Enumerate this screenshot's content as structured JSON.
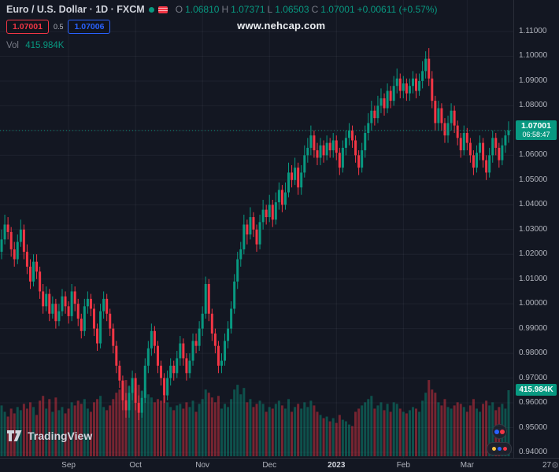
{
  "colors": {
    "bg": "#131722",
    "up": "#089981",
    "down": "#f23645",
    "grid": "rgba(240,243,250,0.055)",
    "axis_text": "#b2b5be",
    "sell_red": "#f23645",
    "buy_blue": "#2962ff",
    "label_green": "#089981"
  },
  "watermark": "www.nehcap.com",
  "header": {
    "symbol_title": "Euro / U.S. Dollar · 1D · FXCM",
    "ohlc": {
      "open_label": "O",
      "open": "1.06810",
      "high_label": "H",
      "high": "1.07371",
      "low_label": "L",
      "low": "1.06503",
      "close_label": "C",
      "close": "1.07001",
      "change": "+0.00611 (+0.57%)"
    },
    "sell_price": "1.07001",
    "spread": "0.5",
    "buy_price": "1.07006",
    "volume_label": "Vol",
    "volume_value": "415.984K"
  },
  "price_label": {
    "price": "1.07001",
    "countdown": "06:58:47"
  },
  "volume_axis_label": "415.984K",
  "logo_text": "TradingView",
  "icons": {
    "gear": "⚙"
  },
  "chart_data": {
    "type": "candlestick",
    "title": "Euro / U.S. Dollar",
    "interval": "1D",
    "exchange": "FXCM",
    "last_price": 1.07001,
    "last_volume_k": 415.984,
    "ylim": [
      0.94,
      1.11
    ],
    "y_ticks": [
      0.94,
      0.95,
      0.96,
      0.97,
      0.98,
      0.99,
      1.0,
      1.01,
      1.02,
      1.03,
      1.04,
      1.05,
      1.06,
      1.07,
      1.08,
      1.09,
      1.1,
      1.11
    ],
    "x_ticks": [
      {
        "label": "Sep",
        "index": 21
      },
      {
        "label": "Oct",
        "index": 42
      },
      {
        "label": "Nov",
        "index": 63
      },
      {
        "label": "Dec",
        "index": 84
      },
      {
        "label": "2023",
        "index": 105,
        "emph": true
      },
      {
        "label": "Feb",
        "index": 126
      },
      {
        "label": "Mar",
        "index": 146
      },
      {
        "label": "27",
        "index": 171
      }
    ],
    "volume_max_scale": 520,
    "candles": [
      [
        1.021,
        1.03,
        1.018,
        1.026,
        320
      ],
      [
        1.026,
        1.036,
        1.024,
        1.032,
        280
      ],
      [
        1.032,
        1.035,
        1.026,
        1.029,
        250
      ],
      [
        1.029,
        1.031,
        1.019,
        1.022,
        300
      ],
      [
        1.022,
        1.025,
        1.015,
        1.018,
        270
      ],
      [
        1.018,
        1.028,
        1.016,
        1.025,
        310
      ],
      [
        1.025,
        1.034,
        1.023,
        1.03,
        290
      ],
      [
        1.03,
        1.032,
        1.018,
        1.021,
        330
      ],
      [
        1.021,
        1.024,
        1.012,
        1.015,
        300
      ],
      [
        1.015,
        1.018,
        1.006,
        1.009,
        340
      ],
      [
        1.009,
        1.02,
        1.007,
        1.017,
        310
      ],
      [
        1.017,
        1.02,
        1.01,
        1.013,
        260
      ],
      [
        1.013,
        1.015,
        1.002,
        1.005,
        350
      ],
      [
        1.005,
        1.008,
        0.996,
        0.999,
        380
      ],
      [
        0.999,
        1.007,
        0.997,
        1.004,
        300
      ],
      [
        1.004,
        1.006,
        0.993,
        0.996,
        360
      ],
      [
        0.996,
        1.003,
        0.994,
        1.0,
        280
      ],
      [
        1.0,
        1.002,
        0.99,
        0.993,
        370
      ],
      [
        0.993,
        1.0,
        0.991,
        0.997,
        290
      ],
      [
        0.997,
        1.006,
        0.995,
        1.003,
        310
      ],
      [
        1.003,
        1.005,
        0.996,
        0.999,
        270
      ],
      [
        0.999,
        1.001,
        0.992,
        0.995,
        300
      ],
      [
        0.995,
        1.008,
        0.993,
        1.005,
        340
      ],
      [
        1.005,
        1.007,
        0.997,
        1.0,
        320
      ],
      [
        1.0,
        1.002,
        0.991,
        0.994,
        350
      ],
      [
        0.994,
        0.996,
        0.986,
        0.989,
        330
      ],
      [
        0.989,
        1.002,
        0.987,
        0.999,
        360
      ],
      [
        0.999,
        1.005,
        0.996,
        1.002,
        300
      ],
      [
        1.002,
        1.004,
        0.995,
        0.998,
        280
      ],
      [
        0.998,
        1.0,
        0.987,
        0.99,
        340
      ],
      [
        0.99,
        0.992,
        0.981,
        0.984,
        360
      ],
      [
        0.984,
        1.0,
        0.982,
        0.997,
        380
      ],
      [
        0.997,
        1.005,
        0.994,
        1.002,
        310
      ],
      [
        1.002,
        1.004,
        0.993,
        0.996,
        290
      ],
      [
        0.996,
        0.998,
        0.987,
        0.99,
        320
      ],
      [
        0.99,
        0.992,
        0.98,
        0.983,
        360
      ],
      [
        0.983,
        0.985,
        0.972,
        0.975,
        400
      ],
      [
        0.975,
        0.977,
        0.966,
        0.969,
        420
      ],
      [
        0.969,
        0.971,
        0.957,
        0.961,
        460
      ],
      [
        0.961,
        0.964,
        0.954,
        0.957,
        480
      ],
      [
        0.957,
        0.967,
        0.954,
        0.964,
        440
      ],
      [
        0.964,
        0.973,
        0.961,
        0.97,
        400
      ],
      [
        0.97,
        0.972,
        0.957,
        0.96,
        430
      ],
      [
        0.96,
        0.963,
        0.953,
        0.956,
        450
      ],
      [
        0.956,
        0.965,
        0.954,
        0.962,
        410
      ],
      [
        0.962,
        0.978,
        0.96,
        0.975,
        430
      ],
      [
        0.975,
        0.985,
        0.972,
        0.982,
        390
      ],
      [
        0.982,
        0.992,
        0.979,
        0.989,
        370
      ],
      [
        0.989,
        0.991,
        0.98,
        0.983,
        340
      ],
      [
        0.983,
        0.985,
        0.972,
        0.975,
        360
      ],
      [
        0.975,
        0.977,
        0.967,
        0.97,
        350
      ],
      [
        0.97,
        0.972,
        0.96,
        0.963,
        380
      ],
      [
        0.963,
        0.973,
        0.961,
        0.97,
        340
      ],
      [
        0.97,
        0.978,
        0.967,
        0.975,
        310
      ],
      [
        0.975,
        0.977,
        0.969,
        0.972,
        290
      ],
      [
        0.972,
        0.981,
        0.97,
        0.978,
        320
      ],
      [
        0.978,
        0.987,
        0.975,
        0.984,
        330
      ],
      [
        0.984,
        0.986,
        0.975,
        0.978,
        300
      ],
      [
        0.978,
        0.98,
        0.969,
        0.972,
        340
      ],
      [
        0.972,
        0.98,
        0.97,
        0.977,
        310
      ],
      [
        0.977,
        0.988,
        0.975,
        0.985,
        350
      ],
      [
        0.985,
        0.988,
        0.98,
        0.983,
        280
      ],
      [
        0.983,
        0.993,
        0.981,
        0.99,
        330
      ],
      [
        0.99,
        0.999,
        0.987,
        0.996,
        360
      ],
      [
        0.996,
        1.011,
        0.994,
        1.008,
        420
      ],
      [
        1.008,
        1.01,
        0.993,
        0.996,
        400
      ],
      [
        0.996,
        0.998,
        0.985,
        0.988,
        370
      ],
      [
        0.988,
        0.99,
        0.98,
        0.983,
        340
      ],
      [
        0.983,
        0.985,
        0.972,
        0.975,
        380
      ],
      [
        0.975,
        0.98,
        0.972,
        0.977,
        300
      ],
      [
        0.977,
        0.988,
        0.975,
        0.985,
        330
      ],
      [
        0.985,
        0.993,
        0.982,
        0.99,
        310
      ],
      [
        0.99,
        1.001,
        0.988,
        0.998,
        360
      ],
      [
        0.998,
        1.012,
        0.996,
        1.009,
        420
      ],
      [
        1.009,
        1.021,
        1.006,
        1.018,
        450
      ],
      [
        1.018,
        1.025,
        1.015,
        1.022,
        390
      ],
      [
        1.022,
        1.036,
        1.02,
        1.032,
        430
      ],
      [
        1.032,
        1.034,
        1.024,
        1.028,
        340
      ],
      [
        1.028,
        1.039,
        1.026,
        1.035,
        360
      ],
      [
        1.035,
        1.037,
        1.027,
        1.03,
        310
      ],
      [
        1.03,
        1.032,
        1.021,
        1.024,
        330
      ],
      [
        1.024,
        1.036,
        1.022,
        1.033,
        350
      ],
      [
        1.033,
        1.042,
        1.03,
        1.038,
        330
      ],
      [
        1.038,
        1.04,
        1.032,
        1.035,
        280
      ],
      [
        1.035,
        1.044,
        1.033,
        1.04,
        310
      ],
      [
        1.04,
        1.042,
        1.031,
        1.034,
        300
      ],
      [
        1.034,
        1.045,
        1.032,
        1.041,
        330
      ],
      [
        1.041,
        1.049,
        1.038,
        1.046,
        350
      ],
      [
        1.046,
        1.048,
        1.037,
        1.04,
        320
      ],
      [
        1.04,
        1.049,
        1.038,
        1.045,
        300
      ],
      [
        1.045,
        1.057,
        1.043,
        1.053,
        360
      ],
      [
        1.053,
        1.056,
        1.047,
        1.05,
        280
      ],
      [
        1.05,
        1.059,
        1.048,
        1.055,
        310
      ],
      [
        1.055,
        1.057,
        1.044,
        1.047,
        330
      ],
      [
        1.047,
        1.056,
        1.044,
        1.053,
        300
      ],
      [
        1.053,
        1.064,
        1.051,
        1.06,
        340
      ],
      [
        1.06,
        1.067,
        1.057,
        1.063,
        310
      ],
      [
        1.063,
        1.072,
        1.06,
        1.068,
        350
      ],
      [
        1.068,
        1.07,
        1.059,
        1.062,
        320
      ],
      [
        1.062,
        1.065,
        1.056,
        1.059,
        280
      ],
      [
        1.059,
        1.067,
        1.056,
        1.064,
        260
      ],
      [
        1.064,
        1.066,
        1.057,
        1.06,
        240
      ],
      [
        1.06,
        1.068,
        1.058,
        1.065,
        250
      ],
      [
        1.065,
        1.067,
        1.059,
        1.062,
        220
      ],
      [
        1.062,
        1.069,
        1.059,
        1.066,
        240
      ],
      [
        1.066,
        1.068,
        1.058,
        1.061,
        210
      ],
      [
        1.061,
        1.063,
        1.052,
        1.055,
        260
      ],
      [
        1.055,
        1.066,
        1.053,
        1.063,
        230
      ],
      [
        1.063,
        1.07,
        1.06,
        1.067,
        220
      ],
      [
        1.067,
        1.073,
        1.064,
        1.07,
        200
      ],
      [
        1.07,
        1.072,
        1.063,
        1.066,
        190
      ],
      [
        1.066,
        1.068,
        1.057,
        1.06,
        280
      ],
      [
        1.06,
        1.062,
        1.052,
        1.055,
        300
      ],
      [
        1.055,
        1.065,
        1.053,
        1.062,
        320
      ],
      [
        1.062,
        1.072,
        1.059,
        1.069,
        340
      ],
      [
        1.069,
        1.077,
        1.066,
        1.073,
        360
      ],
      [
        1.073,
        1.082,
        1.07,
        1.078,
        380
      ],
      [
        1.078,
        1.08,
        1.072,
        1.075,
        300
      ],
      [
        1.075,
        1.084,
        1.073,
        1.08,
        320
      ],
      [
        1.08,
        1.087,
        1.077,
        1.083,
        340
      ],
      [
        1.083,
        1.085,
        1.076,
        1.079,
        290
      ],
      [
        1.079,
        1.089,
        1.077,
        1.086,
        330
      ],
      [
        1.086,
        1.088,
        1.079,
        1.082,
        280
      ],
      [
        1.082,
        1.092,
        1.08,
        1.088,
        340
      ],
      [
        1.088,
        1.095,
        1.085,
        1.091,
        330
      ],
      [
        1.091,
        1.093,
        1.083,
        1.086,
        300
      ],
      [
        1.086,
        1.092,
        1.083,
        1.089,
        280
      ],
      [
        1.089,
        1.091,
        1.082,
        1.085,
        270
      ],
      [
        1.085,
        1.091,
        1.082,
        1.088,
        290
      ],
      [
        1.088,
        1.094,
        1.085,
        1.091,
        310
      ],
      [
        1.091,
        1.093,
        1.083,
        1.086,
        300
      ],
      [
        1.086,
        1.093,
        1.084,
        1.09,
        280
      ],
      [
        1.09,
        1.098,
        1.087,
        1.094,
        350
      ],
      [
        1.094,
        1.102,
        1.091,
        1.099,
        400
      ],
      [
        1.099,
        1.1033,
        1.088,
        1.091,
        480
      ],
      [
        1.091,
        1.094,
        1.079,
        1.082,
        420
      ],
      [
        1.082,
        1.084,
        1.07,
        1.073,
        400
      ],
      [
        1.073,
        1.082,
        1.07,
        1.079,
        340
      ],
      [
        1.079,
        1.081,
        1.07,
        1.073,
        320
      ],
      [
        1.073,
        1.075,
        1.065,
        1.068,
        360
      ],
      [
        1.068,
        1.076,
        1.065,
        1.073,
        310
      ],
      [
        1.073,
        1.081,
        1.07,
        1.078,
        300
      ],
      [
        1.078,
        1.08,
        1.069,
        1.072,
        320
      ],
      [
        1.072,
        1.074,
        1.064,
        1.067,
        340
      ],
      [
        1.067,
        1.069,
        1.059,
        1.062,
        330
      ],
      [
        1.062,
        1.072,
        1.06,
        1.069,
        310
      ],
      [
        1.069,
        1.071,
        1.062,
        1.065,
        280
      ],
      [
        1.065,
        1.067,
        1.057,
        1.06,
        320
      ],
      [
        1.06,
        1.062,
        1.052,
        1.055,
        360
      ],
      [
        1.055,
        1.064,
        1.053,
        1.061,
        300
      ],
      [
        1.061,
        1.068,
        1.058,
        1.065,
        280
      ],
      [
        1.065,
        1.067,
        1.055,
        1.058,
        330
      ],
      [
        1.058,
        1.06,
        1.05,
        1.053,
        350
      ],
      [
        1.053,
        1.063,
        1.051,
        1.06,
        320
      ],
      [
        1.06,
        1.07,
        1.057,
        1.067,
        340
      ],
      [
        1.067,
        1.069,
        1.06,
        1.063,
        290
      ],
      [
        1.063,
        1.065,
        1.055,
        1.058,
        310
      ],
      [
        1.058,
        1.067,
        1.056,
        1.064,
        330
      ],
      [
        1.064,
        1.07,
        1.061,
        1.068,
        300
      ],
      [
        1.0681,
        1.07371,
        1.06503,
        1.07001,
        415.984
      ]
    ]
  }
}
